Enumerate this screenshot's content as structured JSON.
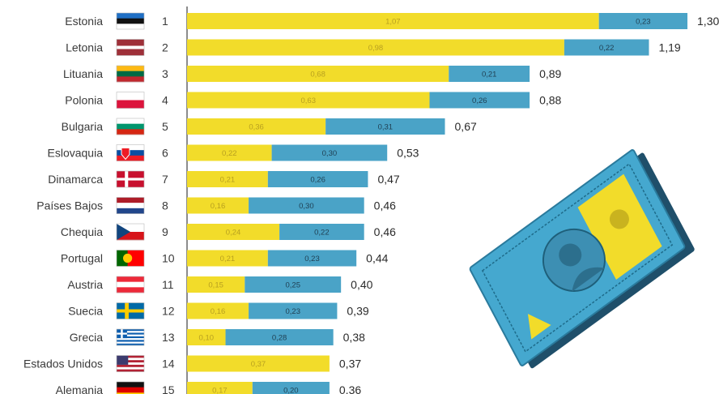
{
  "colors": {
    "segment_a": "#f2dc2a",
    "segment_b": "#4aa3c7",
    "axis": "#666666",
    "label_on_a": "#b8a020",
    "label_on_b": "#1f3f52"
  },
  "decoration": "banknote-illustration",
  "chart_data": {
    "type": "bar",
    "orientation": "horizontal",
    "stacked": true,
    "grid": false,
    "legend": "none",
    "xlim": [
      0,
      1.3
    ],
    "categories": [
      "Estonia",
      "Letonia",
      "Lituania",
      "Polonia",
      "Bulgaria",
      "Eslovaquia",
      "Dinamarca",
      "Países Bajos",
      "Chequia",
      "Portugal",
      "Austria",
      "Suecia",
      "Grecia",
      "Estados Unidos",
      "Alemania"
    ],
    "ranks": [
      "1",
      "2",
      "3",
      "4",
      "5",
      "6",
      "7",
      "8",
      "9",
      "10",
      "11",
      "12",
      "13",
      "14",
      "15"
    ],
    "flags": [
      "EE",
      "LV",
      "LT",
      "PL",
      "BG",
      "SK",
      "DK",
      "NL",
      "CZ",
      "PT",
      "AT",
      "SE",
      "GR",
      "US",
      "DE"
    ],
    "series": [
      {
        "values": [
          1.07,
          0.98,
          0.68,
          0.63,
          0.36,
          0.22,
          0.21,
          0.16,
          0.24,
          0.21,
          0.15,
          0.16,
          0.1,
          0.37,
          0.17
        ],
        "labels": [
          "1,07",
          "0,98",
          "0,68",
          "0,63",
          "0,36",
          "0,22",
          "0,21",
          "0,16",
          "0,24",
          "0,21",
          "0,15",
          "0,16",
          "0,10",
          "0,37",
          "0,17"
        ]
      },
      {
        "values": [
          0.23,
          0.22,
          0.21,
          0.26,
          0.31,
          0.3,
          0.26,
          0.3,
          0.22,
          0.23,
          0.25,
          0.23,
          0.28,
          0,
          0.2
        ],
        "labels": [
          "0,23",
          "0,22",
          "0,21",
          "0,26",
          "0,31",
          "0,30",
          "0,26",
          "0,30",
          "0,22",
          "0,23",
          "0,25",
          "0,23",
          "0,28",
          "",
          "0,20"
        ]
      }
    ],
    "totals": [
      "1,30",
      "1,19",
      "0,89",
      "0,88",
      "0,67",
      "0,53",
      "0,47",
      "0,46",
      "0,46",
      "0,44",
      "0,40",
      "0,39",
      "0,38",
      "0,37",
      "0,36"
    ]
  }
}
